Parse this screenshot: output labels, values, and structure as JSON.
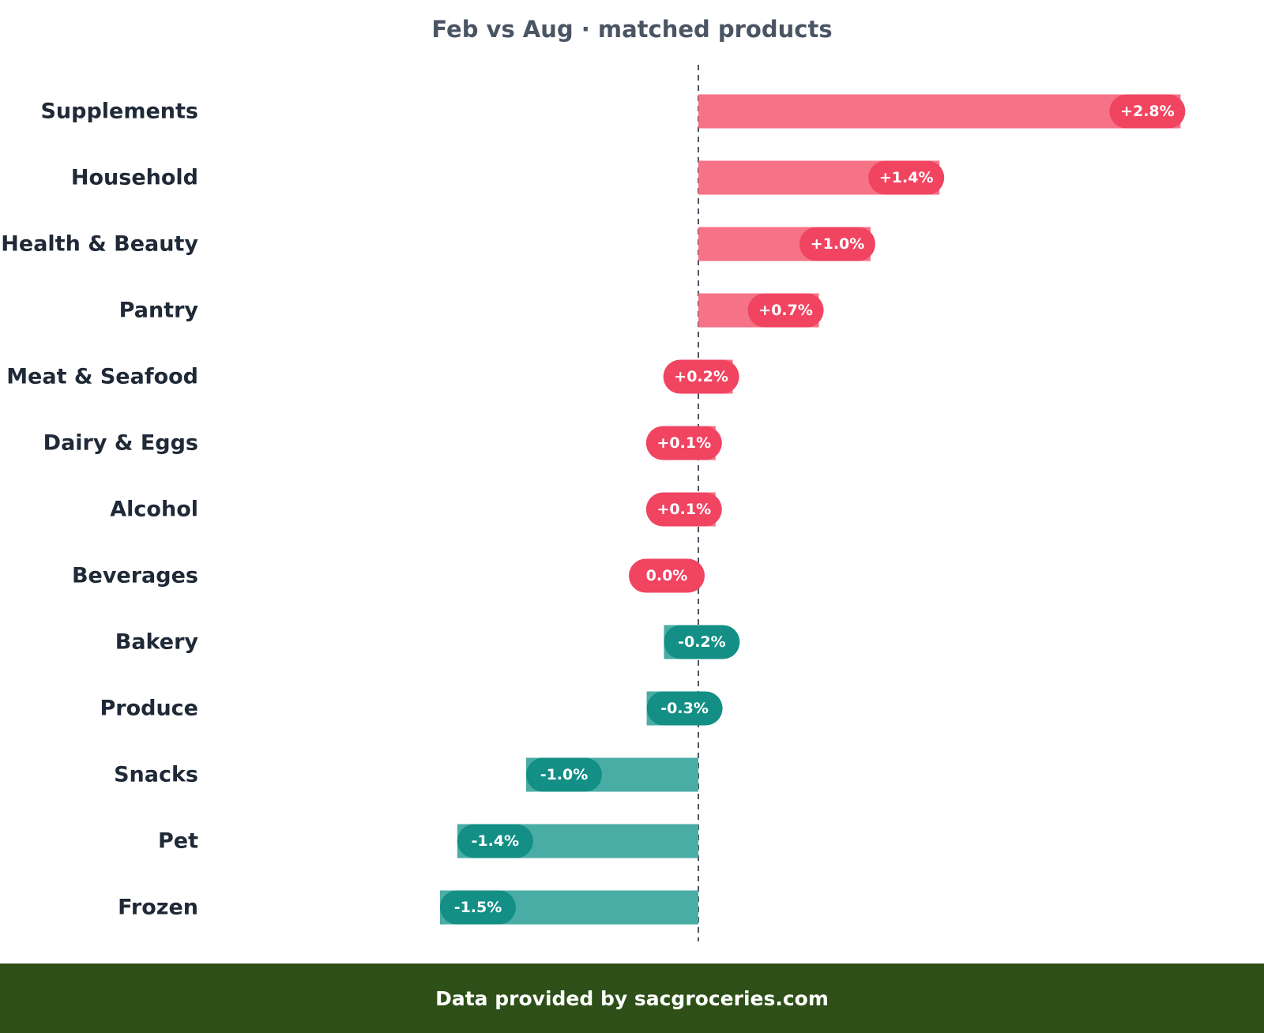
{
  "chart_data": {
    "type": "bar",
    "orientation": "horizontal",
    "title": "Feb vs Aug · matched products",
    "xlabel": "",
    "ylabel": "",
    "unit": "%",
    "categories": [
      "Supplements",
      "Household",
      "Health & Beauty",
      "Pantry",
      "Meat & Seafood",
      "Dairy & Eggs",
      "Alcohol",
      "Beverages",
      "Bakery",
      "Produce",
      "Snacks",
      "Pet",
      "Frozen"
    ],
    "values": [
      2.8,
      1.4,
      1.0,
      0.7,
      0.2,
      0.1,
      0.1,
      0.0,
      -0.2,
      -0.3,
      -1.0,
      -1.4,
      -1.5
    ],
    "value_labels": [
      "+2.8%",
      "+1.4%",
      "+1.0%",
      "+0.7%",
      "+0.2%",
      "+0.1%",
      "+0.1%",
      "0.0%",
      "-0.2%",
      "-0.3%",
      "-1.0%",
      "-1.4%",
      "-1.5%"
    ],
    "xlim": [
      -1.5,
      2.8
    ],
    "zero_line": "dashed",
    "grid": false,
    "legend": "none",
    "colors": {
      "positive_bar": "#f67287",
      "positive_pill": "#f04461",
      "negative_bar": "#4aada5",
      "negative_pill": "#138f85",
      "zero_line": "#4a5563"
    }
  },
  "footer": {
    "text": "Data provided by sacgroceries.com",
    "background": "#2e5018"
  }
}
